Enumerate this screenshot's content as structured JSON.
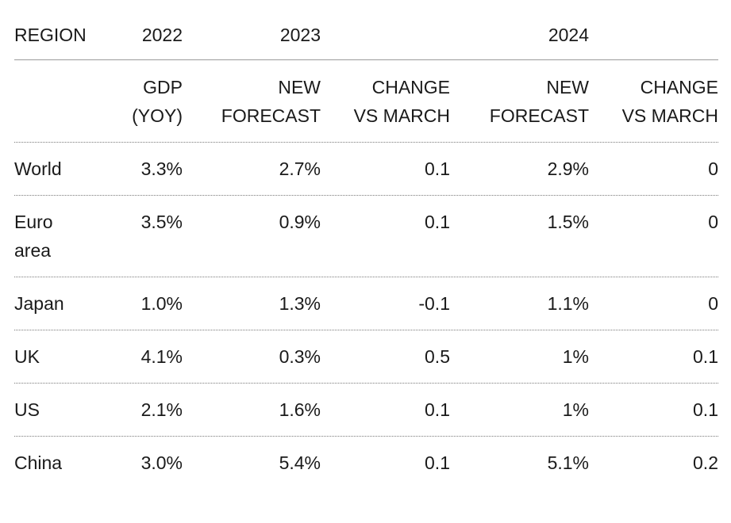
{
  "chart_data": {
    "type": "table",
    "year_headers": {
      "region": "REGION",
      "y2022": "2022",
      "y2023": "2023",
      "y2024": "2024"
    },
    "sub_headers": [
      [
        "",
        ""
      ],
      [
        "GDP",
        "(YOY)"
      ],
      [
        "NEW",
        "FORECAST"
      ],
      [
        "CHANGE",
        "VS MARCH"
      ],
      [
        "NEW",
        "FORECAST"
      ],
      [
        "CHANGE",
        "VS MARCH"
      ]
    ],
    "rows": [
      {
        "region": [
          "World"
        ],
        "cells": [
          "3.3%",
          "2.7%",
          "0.1",
          "2.9%",
          "0"
        ]
      },
      {
        "region": [
          "Euro",
          "area"
        ],
        "cells": [
          "3.5%",
          "0.9%",
          "0.1",
          "1.5%",
          "0"
        ]
      },
      {
        "region": [
          "Japan"
        ],
        "cells": [
          "1.0%",
          "1.3%",
          "-0.1",
          "1.1%",
          "0"
        ]
      },
      {
        "region": [
          "UK"
        ],
        "cells": [
          "4.1%",
          "0.3%",
          "0.5",
          "1%",
          "0.1"
        ]
      },
      {
        "region": [
          "US"
        ],
        "cells": [
          "2.1%",
          "1.6%",
          "0.1",
          "1%",
          "0.1"
        ]
      },
      {
        "region": [
          "China"
        ],
        "cells": [
          "3.0%",
          "5.4%",
          "0.1",
          "5.1%",
          "0.2"
        ]
      }
    ]
  }
}
